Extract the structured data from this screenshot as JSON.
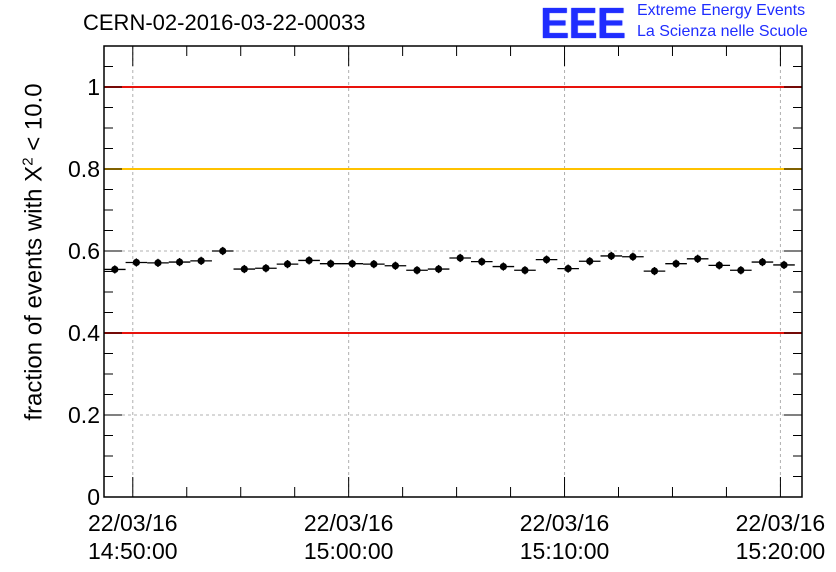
{
  "header": {
    "run_id": "CERN-02-2016-03-22-00033",
    "logo_text": "EEE",
    "logo_line1": "Extreme Energy Events",
    "logo_line2": "La Scienza nelle Scuole"
  },
  "chart_data": {
    "type": "scatter",
    "title": "CERN-02-2016-03-22-00033",
    "ylabel_prefix": "fraction of events with Χ",
    "ylabel_sup": "2",
    "ylabel_suffix": " < 10.0",
    "xlabel": "",
    "ylim": [
      0,
      1.1
    ],
    "xlim": [
      "2016-03-22 14:48:40",
      "2016-03-22 15:21:00"
    ],
    "yticks": [
      "0",
      "0.2",
      "0.4",
      "0.6",
      "0.8",
      "1"
    ],
    "xticks": [
      {
        "date": "22/03/16",
        "time": "14:50:00",
        "t": "2016-03-22 14:50:00"
      },
      {
        "date": "22/03/16",
        "time": "15:00:00",
        "t": "2016-03-22 15:00:00"
      },
      {
        "date": "22/03/16",
        "time": "15:10:00",
        "t": "2016-03-22 15:10:00"
      },
      {
        "date": "22/03/16",
        "time": "15:20:00",
        "t": "2016-03-22 15:20:00"
      }
    ],
    "grid": true,
    "reference_lines": [
      {
        "y": 1.0,
        "color": "#e8120c"
      },
      {
        "y": 0.8,
        "color": "#ffc200"
      },
      {
        "y": 0.4,
        "color": "#e8120c"
      }
    ],
    "bin_width_s": 60,
    "error_bar": 0.01,
    "series": [
      {
        "x": [
          "2016-03-22 14:49:10",
          "2016-03-22 14:50:10",
          "2016-03-22 14:51:10",
          "2016-03-22 14:52:10",
          "2016-03-22 14:53:10",
          "2016-03-22 14:54:10",
          "2016-03-22 14:55:10",
          "2016-03-22 14:56:10",
          "2016-03-22 14:57:10",
          "2016-03-22 14:58:10",
          "2016-03-22 14:59:10",
          "2016-03-22 15:00:10",
          "2016-03-22 15:01:10",
          "2016-03-22 15:02:10",
          "2016-03-22 15:03:10",
          "2016-03-22 15:04:10",
          "2016-03-22 15:05:10",
          "2016-03-22 15:06:10",
          "2016-03-22 15:07:10",
          "2016-03-22 15:08:10",
          "2016-03-22 15:09:10",
          "2016-03-22 15:10:10",
          "2016-03-22 15:11:10",
          "2016-03-22 15:12:10",
          "2016-03-22 15:13:10",
          "2016-03-22 15:14:10",
          "2016-03-22 15:15:10",
          "2016-03-22 15:16:10",
          "2016-03-22 15:17:10",
          "2016-03-22 15:18:10",
          "2016-03-22 15:19:10",
          "2016-03-22 15:20:10"
        ],
        "y": [
          0.555,
          0.572,
          0.571,
          0.573,
          0.576,
          0.6,
          0.556,
          0.558,
          0.568,
          0.577,
          0.569,
          0.569,
          0.568,
          0.564,
          0.553,
          0.556,
          0.583,
          0.574,
          0.562,
          0.553,
          0.579,
          0.557,
          0.575,
          0.588,
          0.586,
          0.551,
          0.569,
          0.581,
          0.565,
          0.553,
          0.573,
          0.566
        ]
      }
    ]
  }
}
